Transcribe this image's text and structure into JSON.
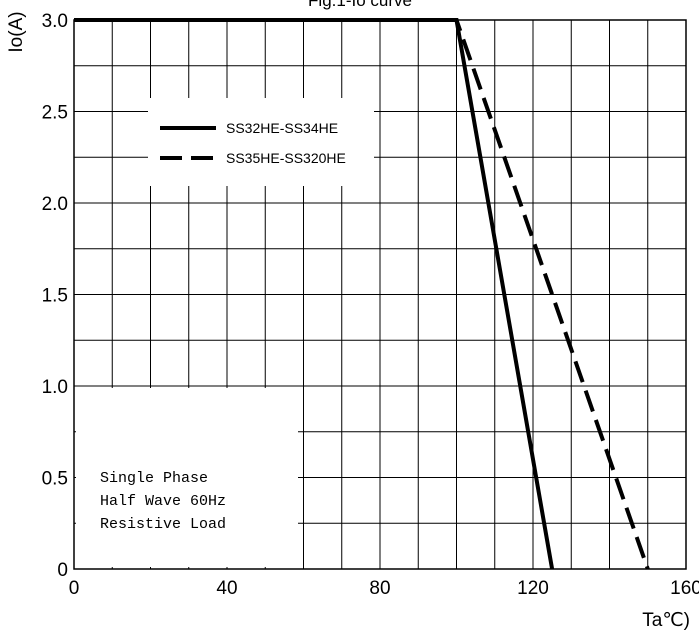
{
  "chart_data": {
    "type": "line",
    "title": "Fig.1-Io curve",
    "xlabel": "Ta℃)",
    "ylabel": "Io(A)",
    "xlim": [
      0,
      160
    ],
    "ylim": [
      0,
      3.0
    ],
    "x_ticks": [
      {
        "value": 0,
        "label": "0"
      },
      {
        "value": 40,
        "label": "40"
      },
      {
        "value": 80,
        "label": "80"
      },
      {
        "value": 120,
        "label": "120"
      },
      {
        "value": 160,
        "label": "160"
      }
    ],
    "y_ticks": [
      {
        "value": 0,
        "label": "0"
      },
      {
        "value": 0.5,
        "label": "0.5"
      },
      {
        "value": 1.0,
        "label": "1.0"
      },
      {
        "value": 1.5,
        "label": "1.5"
      },
      {
        "value": 2.0,
        "label": "2.0"
      },
      {
        "value": 2.5,
        "label": "2.5"
      },
      {
        "value": 3.0,
        "label": "3.0"
      }
    ],
    "grid": true,
    "grid_x_step": 10,
    "grid_y_step": 0.25,
    "legend_position": "top-left",
    "series": [
      {
        "name": "SS32HE-SS34HE",
        "style": "solid",
        "color": "#000000",
        "x": [
          0,
          100,
          125
        ],
        "y": [
          3.0,
          3.0,
          0
        ]
      },
      {
        "name": "SS35HE-SS320HE",
        "style": "dashed",
        "color": "#000000",
        "x": [
          0,
          100,
          150
        ],
        "y": [
          3.0,
          3.0,
          0
        ]
      }
    ],
    "annotation": [
      "Single Phase",
      "Half Wave 60Hz",
      "Resistive Load"
    ]
  }
}
